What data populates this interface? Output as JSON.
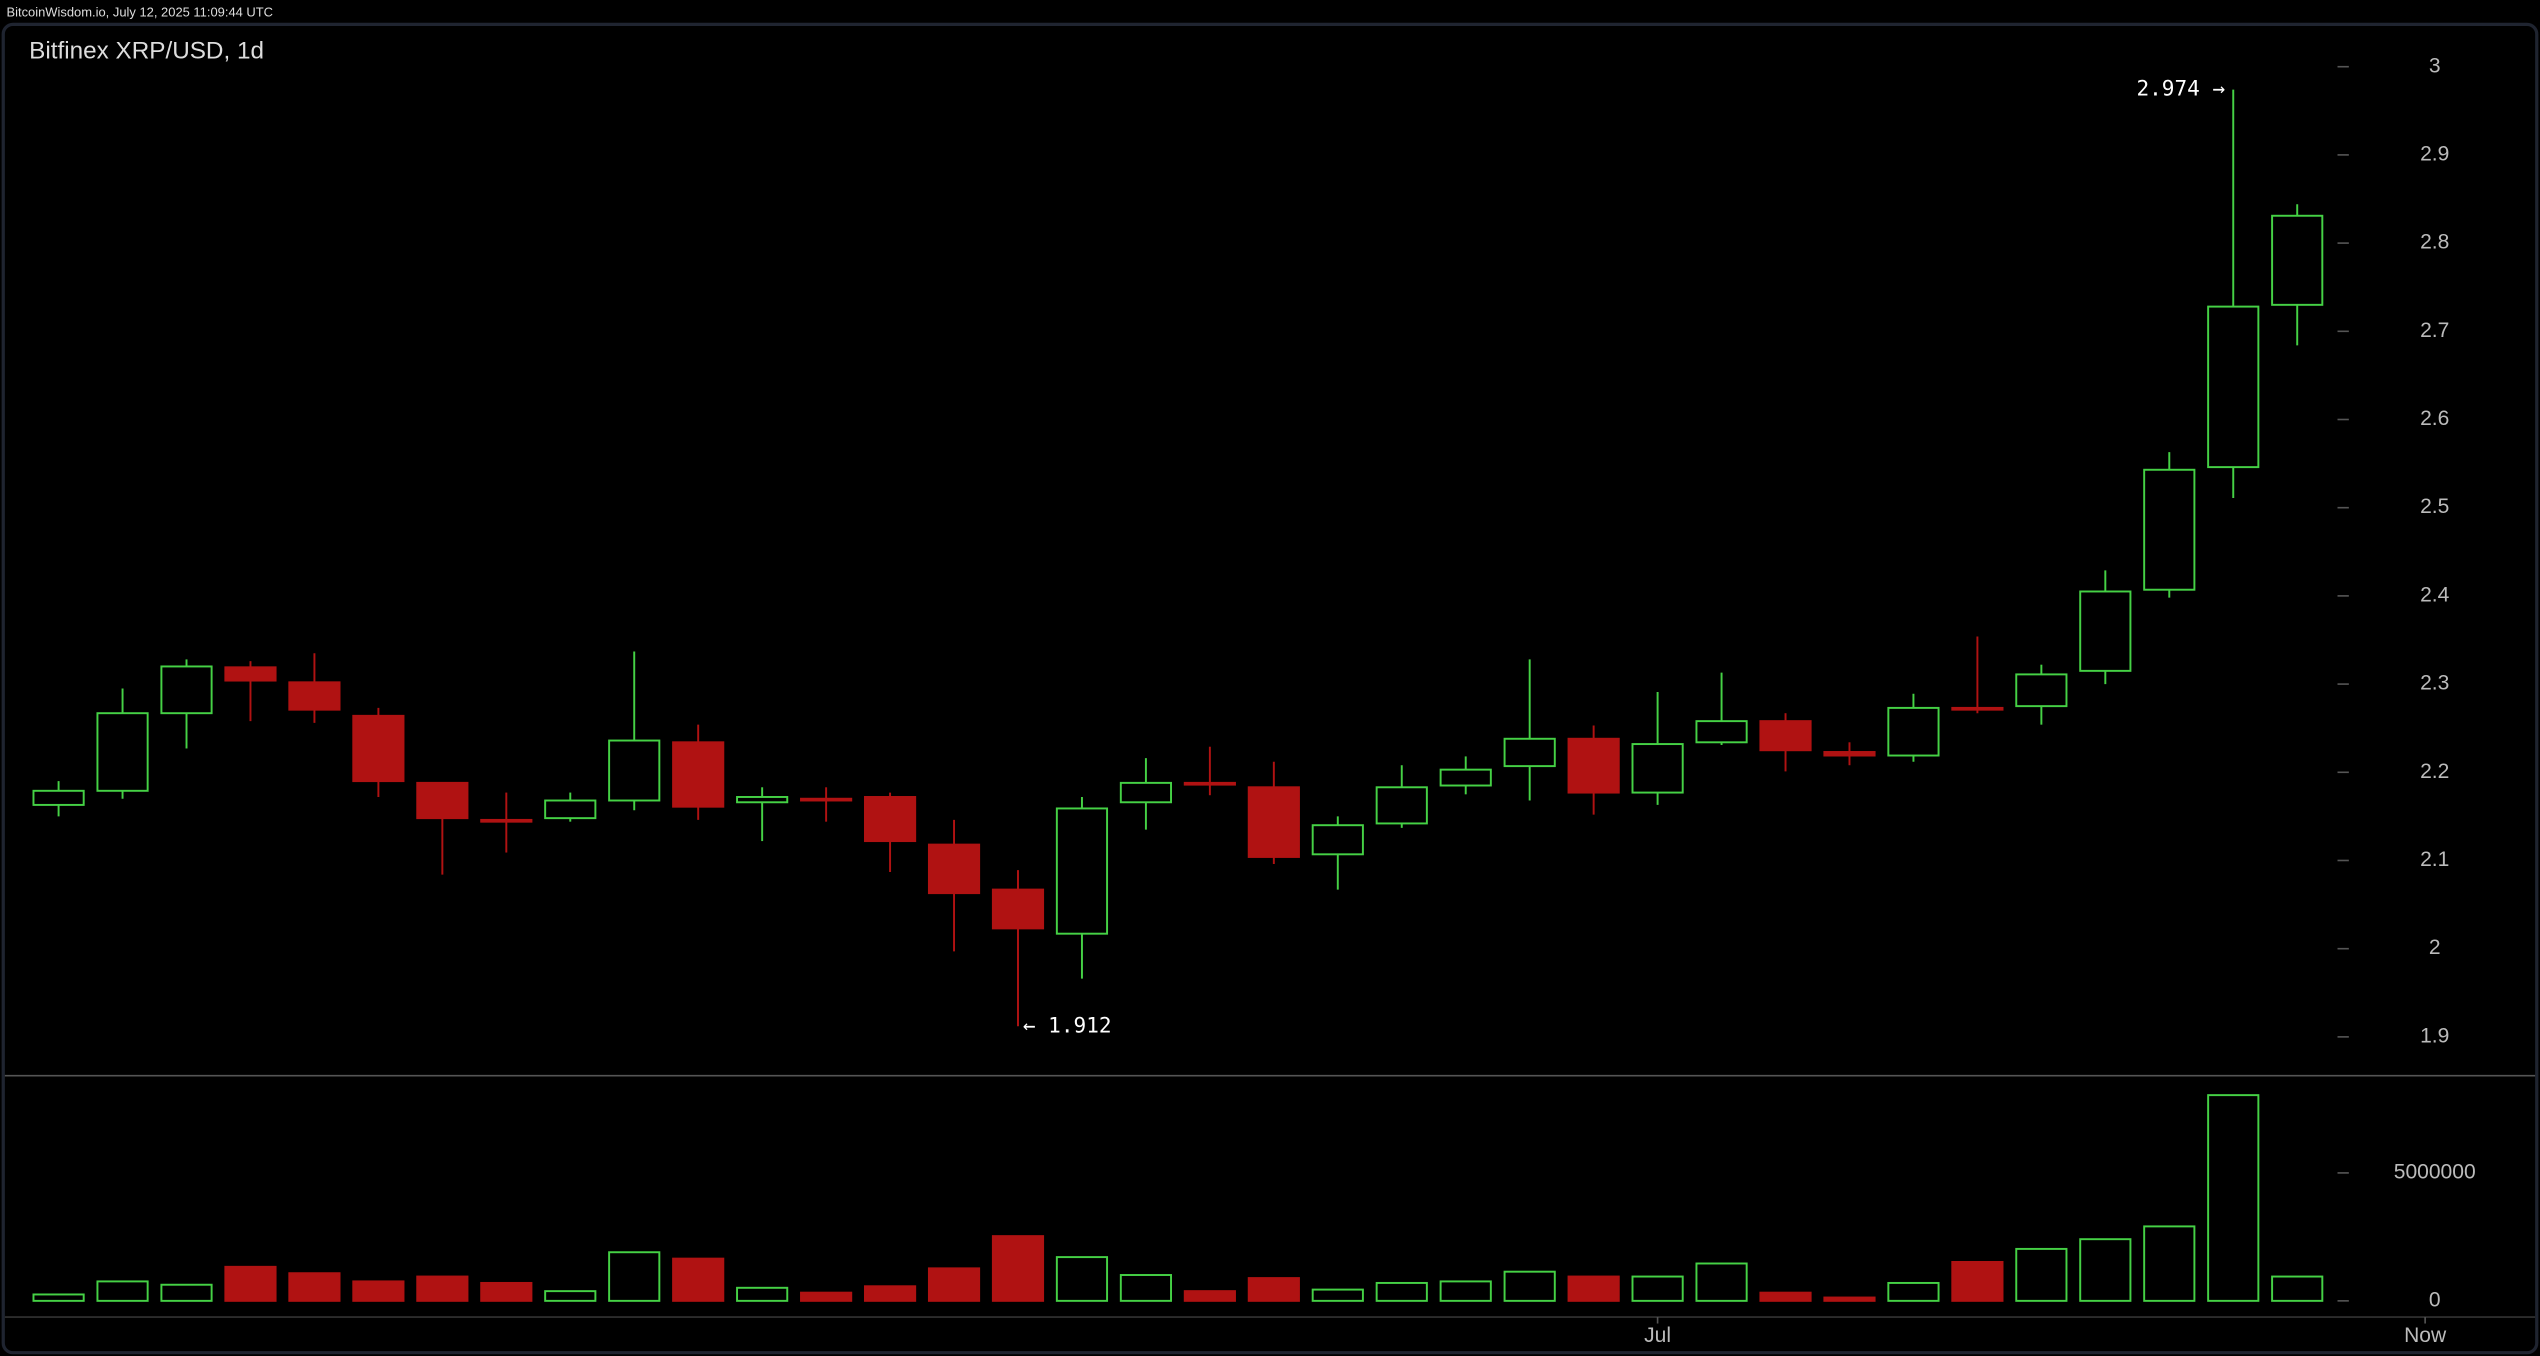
{
  "header": "BitcoinWisdom.io, July 12, 2025 11:09:44 UTC",
  "chart_data": {
    "type": "candlestick",
    "title": "Bitfinex XRP/USD, 1d",
    "up_color": "#45d145",
    "down_color": "#b01212",
    "open": [
      2.163,
      2.179,
      2.267,
      2.319,
      2.302,
      2.264,
      2.188,
      2.146,
      2.148,
      2.168,
      2.234,
      2.166,
      2.17,
      2.172,
      2.118,
      2.067,
      2.017,
      2.166,
      2.188,
      2.183,
      2.107,
      2.142,
      2.185,
      2.207,
      2.238,
      2.177,
      2.234,
      2.258,
      2.223,
      2.219,
      2.273,
      2.275,
      2.315,
      2.407,
      2.546,
      2.73
    ],
    "high": [
      2.19,
      2.295,
      2.328,
      2.326,
      2.335,
      2.273,
      2.188,
      2.177,
      2.177,
      2.337,
      2.254,
      2.183,
      2.183,
      2.177,
      2.146,
      2.089,
      2.172,
      2.216,
      2.229,
      2.212,
      2.15,
      2.208,
      2.218,
      2.328,
      2.253,
      2.291,
      2.313,
      2.267,
      2.234,
      2.289,
      2.354,
      2.322,
      2.429,
      2.563,
      2.974,
      2.844
    ],
    "low": [
      2.15,
      2.17,
      2.227,
      2.258,
      2.256,
      2.172,
      2.084,
      2.109,
      2.144,
      2.157,
      2.146,
      2.122,
      2.144,
      2.087,
      1.997,
      1.912,
      1.966,
      2.135,
      2.174,
      2.096,
      2.067,
      2.137,
      2.175,
      2.168,
      2.152,
      2.163,
      2.231,
      2.201,
      2.208,
      2.212,
      2.267,
      2.254,
      2.3,
      2.398,
      2.511,
      2.684
    ],
    "close": [
      2.179,
      2.267,
      2.32,
      2.304,
      2.271,
      2.19,
      2.148,
      2.144,
      2.168,
      2.236,
      2.161,
      2.172,
      2.168,
      2.122,
      2.063,
      2.023,
      2.159,
      2.188,
      2.186,
      2.104,
      2.14,
      2.183,
      2.203,
      2.238,
      2.177,
      2.232,
      2.258,
      2.225,
      2.219,
      2.273,
      2.271,
      2.311,
      2.405,
      2.543,
      2.728,
      2.831
    ],
    "ylim": [
      1.856,
      3.048
    ],
    "yticks": [
      1.9,
      2,
      2.1,
      2.2,
      2.3,
      2.4,
      2.5,
      2.6,
      2.7,
      2.8,
      2.9,
      3
    ],
    "xlim": [
      -0.84,
      38.72
    ],
    "xticks": [
      {
        "value": 25,
        "label": "Jul"
      },
      {
        "value": 37,
        "label": "Now"
      }
    ],
    "annotations": [
      "2.974 →",
      "← 1.912"
    ],
    "volume": {
      "values": [
        250000,
        760000,
        630000,
        1330000,
        1080000,
        760000,
        950000,
        700000,
        380000,
        1900000,
        1650000,
        510000,
        320000,
        570000,
        1270000,
        2530000,
        1710000,
        1010000,
        380000,
        890000,
        440000,
        700000,
        760000,
        1140000,
        950000,
        950000,
        1460000,
        320000,
        130000,
        700000,
        1520000,
        2030000,
        2410000,
        2910000,
        8040000,
        950000
      ],
      "ylim": [
        -633000,
        8800000
      ],
      "yticks": [
        0,
        5000000
      ]
    }
  }
}
